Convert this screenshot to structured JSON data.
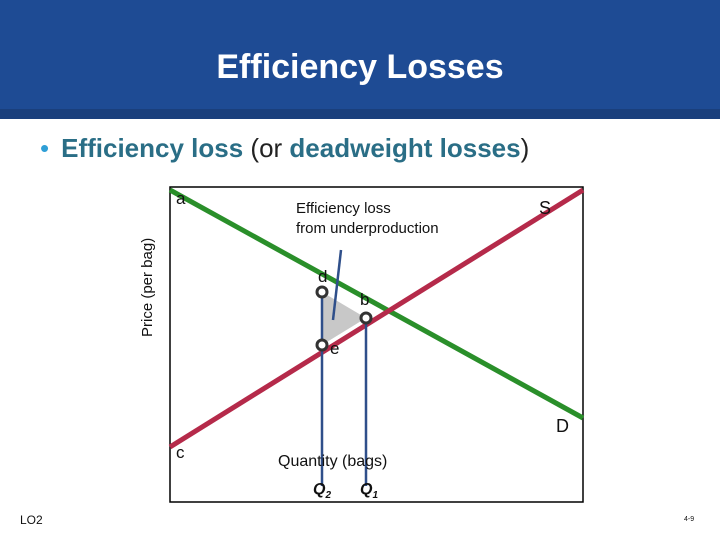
{
  "slide": {
    "title": "Efficiency Losses",
    "bullet": {
      "term1": "Efficiency loss",
      "plain": " (or ",
      "term2": "deadweight losses",
      "close": ")"
    },
    "footer_left": "LO2",
    "footer_right": "4-9"
  },
  "diagram": {
    "y_axis_label": "Price (per bag)",
    "x_axis_label": "Quantity (bags)",
    "annotation": [
      "Efficiency loss",
      "from underproduction"
    ],
    "points": {
      "a": "a",
      "b": "b",
      "c": "c",
      "d": "d",
      "e": "e"
    },
    "curves": {
      "supply": "S",
      "demand": "D"
    },
    "quantities": {
      "q2_letter": "Q",
      "q2_sub": "2",
      "q1_letter": "Q",
      "q1_sub": "1"
    },
    "colors": {
      "header": "#1e4b94",
      "demand": "#2a8f2a",
      "supply": "#b52a4a",
      "quantity_lines": "#2f4f8a",
      "deadweight_area": "#c8c8c8",
      "term_text": "#2a6e86",
      "bullet": "#2f9fd6"
    }
  }
}
